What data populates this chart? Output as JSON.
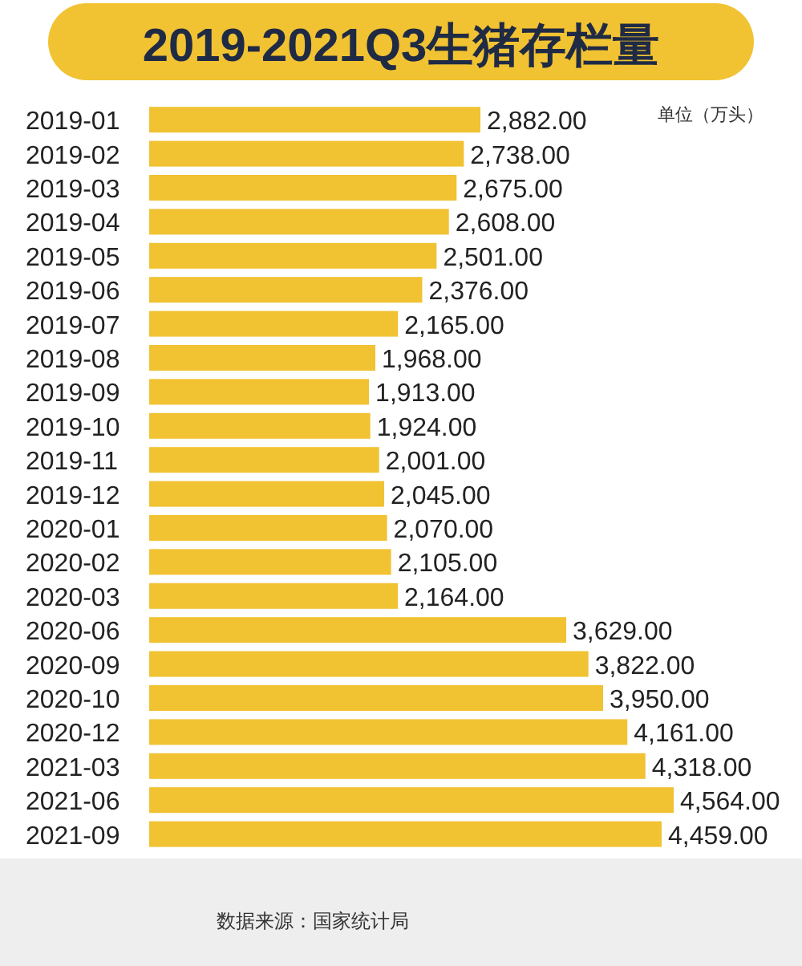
{
  "chart_data": {
    "type": "bar",
    "orientation": "horizontal",
    "title": "2019-2021Q3生猪存栏量",
    "categories": [
      "2019-01",
      "2019-02",
      "2019-03",
      "2019-04",
      "2019-05",
      "2019-06",
      "2019-07",
      "2019-08",
      "2019-09",
      "2019-10",
      "2019-11",
      "2019-12",
      "2020-01",
      "2020-02",
      "2020-03",
      "2020-06",
      "2020-09",
      "2020-10",
      "2020-12",
      "2021-03",
      "2021-06",
      "2021-09"
    ],
    "values": [
      2882,
      2738,
      2675,
      2608,
      2501,
      2376,
      2165,
      1968,
      1913,
      1924,
      2001,
      2045,
      2070,
      2105,
      2164,
      3629,
      3822,
      3950,
      4161,
      4318,
      4564,
      4459
    ],
    "value_labels": [
      "2,882.00",
      "2,738.00",
      "2,675.00",
      "2,608.00",
      "2,501.00",
      "2,376.00",
      "2,165.00",
      "1,968.00",
      "1,913.00",
      "1,924.00",
      "2,001.00",
      "2,045.00",
      "2,070.00",
      "2,105.00",
      "2,164.00",
      "3,629.00",
      "3,822.00",
      "3,950.00",
      "4,161.00",
      "4,318.00",
      "4,564.00",
      "4,459.00"
    ],
    "color": "#f1c232",
    "annotations": [
      "单位（万头）",
      "数据来源：国家统计局"
    ]
  }
}
